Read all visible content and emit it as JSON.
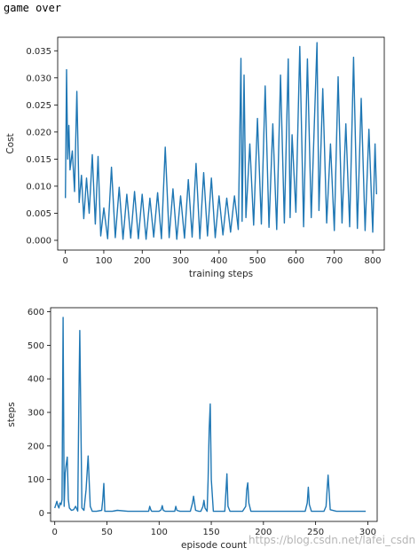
{
  "console": {
    "output_text": "game over"
  },
  "watermark": "https://blog.csdn.net/lafei_csdn",
  "colors": {
    "series": "#1f77b4"
  },
  "chart_data": [
    {
      "type": "line",
      "xlabel": "training steps",
      "ylabel": "Cost",
      "xlim": [
        -20,
        830
      ],
      "ylim": [
        -0.0018,
        0.0375
      ],
      "xticks": [
        0,
        100,
        200,
        300,
        400,
        500,
        600,
        700,
        800
      ],
      "yticks": [
        0.0,
        0.005,
        0.01,
        0.015,
        0.02,
        0.025,
        0.03,
        0.035
      ],
      "ytick_labels": [
        "0.000",
        "0.005",
        "0.010",
        "0.015",
        "0.020",
        "0.025",
        "0.030",
        "0.035"
      ],
      "grid": false,
      "series": [
        {
          "x": [
            0,
            3,
            6,
            9,
            12,
            18,
            24,
            30,
            36,
            42,
            48,
            55,
            62,
            70,
            78,
            85,
            92,
            100,
            110,
            120,
            130,
            140,
            150,
            160,
            170,
            180,
            190,
            200,
            210,
            220,
            230,
            240,
            250,
            260,
            270,
            280,
            290,
            300,
            310,
            320,
            330,
            340,
            350,
            360,
            370,
            380,
            390,
            400,
            410,
            420,
            430,
            440,
            450,
            457,
            460,
            465,
            470,
            480,
            490,
            500,
            510,
            520,
            530,
            540,
            550,
            560,
            570,
            580,
            585,
            590,
            600,
            610,
            620,
            630,
            640,
            650,
            655,
            660,
            670,
            680,
            690,
            700,
            710,
            720,
            730,
            740,
            750,
            760,
            770,
            780,
            790,
            800,
            806,
            810
          ],
          "y": [
            0.0078,
            0.0315,
            0.015,
            0.0212,
            0.013,
            0.0165,
            0.009,
            0.0275,
            0.007,
            0.012,
            0.004,
            0.0115,
            0.005,
            0.0158,
            0.003,
            0.0155,
            0.0008,
            0.006,
            0.0003,
            0.0135,
            0.0005,
            0.0098,
            0.0002,
            0.0085,
            0.0004,
            0.009,
            0.0003,
            0.0085,
            0.0002,
            0.0078,
            0.0006,
            0.0088,
            0.0003,
            0.0172,
            0.0005,
            0.0095,
            0.0002,
            0.0082,
            0.0004,
            0.0112,
            0.0006,
            0.0142,
            0.0003,
            0.0125,
            0.0008,
            0.0115,
            0.0005,
            0.0082,
            0.001,
            0.0078,
            0.0015,
            0.0082,
            0.002,
            0.0336,
            0.0035,
            0.0305,
            0.0042,
            0.0178,
            0.0028,
            0.0225,
            0.003,
            0.0285,
            0.0024,
            0.0215,
            0.002,
            0.0305,
            0.0032,
            0.0335,
            0.0042,
            0.0195,
            0.0052,
            0.0358,
            0.0025,
            0.0335,
            0.0042,
            0.026,
            0.0365,
            0.0055,
            0.028,
            0.0032,
            0.0178,
            0.0018,
            0.0302,
            0.0032,
            0.0215,
            0.0025,
            0.0338,
            0.0022,
            0.0262,
            0.0018,
            0.0205,
            0.0015,
            0.0178,
            0.0085
          ]
        }
      ]
    },
    {
      "type": "line",
      "xlabel": "episode count",
      "ylabel": "steps",
      "xlim": [
        -4,
        309
      ],
      "ylim": [
        -25,
        612
      ],
      "xticks": [
        0,
        50,
        100,
        150,
        200,
        250,
        300
      ],
      "yticks": [
        0,
        100,
        200,
        300,
        400,
        500,
        600
      ],
      "grid": false,
      "series": [
        {
          "x": [
            0,
            1,
            2,
            3,
            4,
            5,
            6,
            7,
            8,
            9,
            10,
            11,
            12,
            13,
            14,
            16,
            18,
            20,
            22,
            23,
            24,
            26,
            28,
            30,
            32,
            34,
            36,
            40,
            45,
            46,
            47,
            48,
            50,
            55,
            60,
            70,
            80,
            90,
            91,
            92,
            93,
            95,
            100,
            102,
            103,
            104,
            106,
            110,
            115,
            116,
            117,
            120,
            125,
            130,
            132,
            133,
            135,
            138,
            140,
            142,
            143,
            144,
            146,
            147,
            148,
            149,
            150,
            152,
            155,
            160,
            163,
            164,
            165,
            166,
            168,
            170,
            175,
            180,
            183,
            184,
            185,
            186,
            188,
            190,
            195,
            200,
            210,
            220,
            230,
            240,
            242,
            243,
            244,
            246,
            250,
            255,
            258,
            260,
            261,
            262,
            264,
            270,
            280,
            290,
            298
          ],
          "y": [
            15,
            25,
            35,
            22,
            15,
            30,
            25,
            40,
            583,
            20,
            120,
            145,
            167,
            40,
            15,
            8,
            10,
            20,
            6,
            300,
            544,
            15,
            8,
            70,
            170,
            20,
            5,
            5,
            8,
            40,
            88,
            5,
            5,
            5,
            8,
            5,
            5,
            5,
            20,
            10,
            5,
            5,
            5,
            10,
            22,
            8,
            5,
            5,
            5,
            20,
            8,
            5,
            5,
            5,
            30,
            50,
            8,
            5,
            5,
            20,
            38,
            15,
            5,
            100,
            250,
            325,
            100,
            5,
            5,
            5,
            5,
            60,
            117,
            20,
            5,
            5,
            5,
            5,
            20,
            70,
            90,
            30,
            5,
            5,
            5,
            5,
            5,
            5,
            5,
            5,
            30,
            77,
            25,
            5,
            5,
            5,
            5,
            20,
            70,
            113,
            10,
            5,
            5,
            5,
            5
          ]
        }
      ]
    }
  ]
}
